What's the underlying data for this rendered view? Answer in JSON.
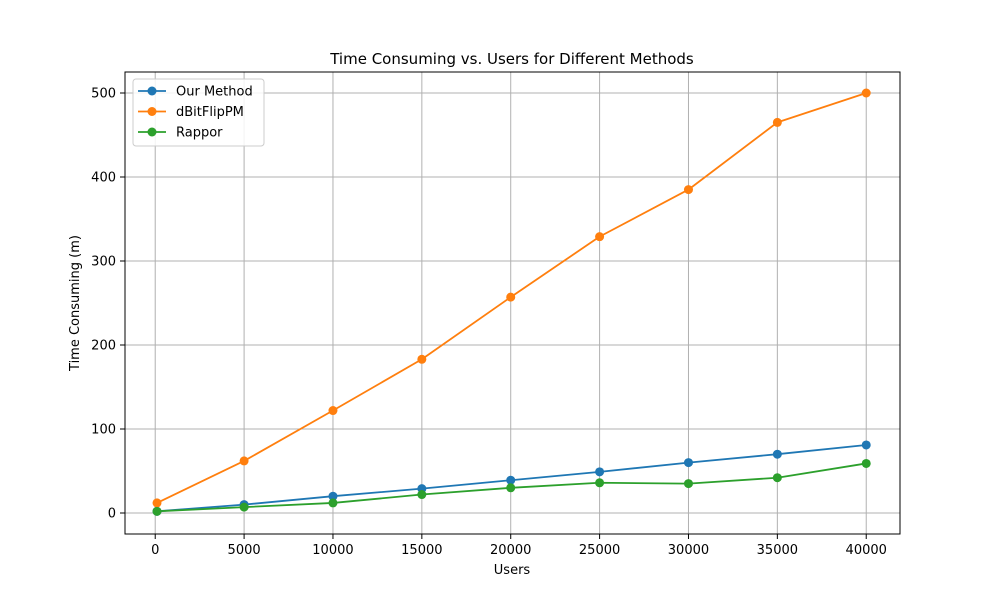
{
  "chart_data": {
    "type": "line",
    "title": "Time Consuming vs. Users for Different Methods",
    "xlabel": "Users",
    "ylabel": "Time Consuming (m)",
    "x": [
      100,
      5000,
      10000,
      15000,
      20000,
      25000,
      30000,
      35000,
      40000
    ],
    "xlim": [
      -1700,
      41900
    ],
    "ylim": [
      -25,
      525
    ],
    "xticks": [
      0,
      5000,
      10000,
      15000,
      20000,
      25000,
      30000,
      35000,
      40000
    ],
    "yticks": [
      0,
      100,
      200,
      300,
      400,
      500
    ],
    "grid": true,
    "legend_position": "top-left",
    "series": [
      {
        "name": "Our Method",
        "color": "#1f77b4",
        "values": [
          2,
          10,
          20,
          29,
          39,
          49,
          60,
          70,
          81
        ]
      },
      {
        "name": "dBitFlipPM",
        "color": "#ff7f0e",
        "values": [
          12,
          62,
          122,
          183,
          257,
          329,
          385,
          465,
          500
        ]
      },
      {
        "name": "Rappor",
        "color": "#2ca02c",
        "values": [
          2,
          7,
          12,
          22,
          30,
          36,
          35,
          42,
          59
        ]
      }
    ]
  }
}
